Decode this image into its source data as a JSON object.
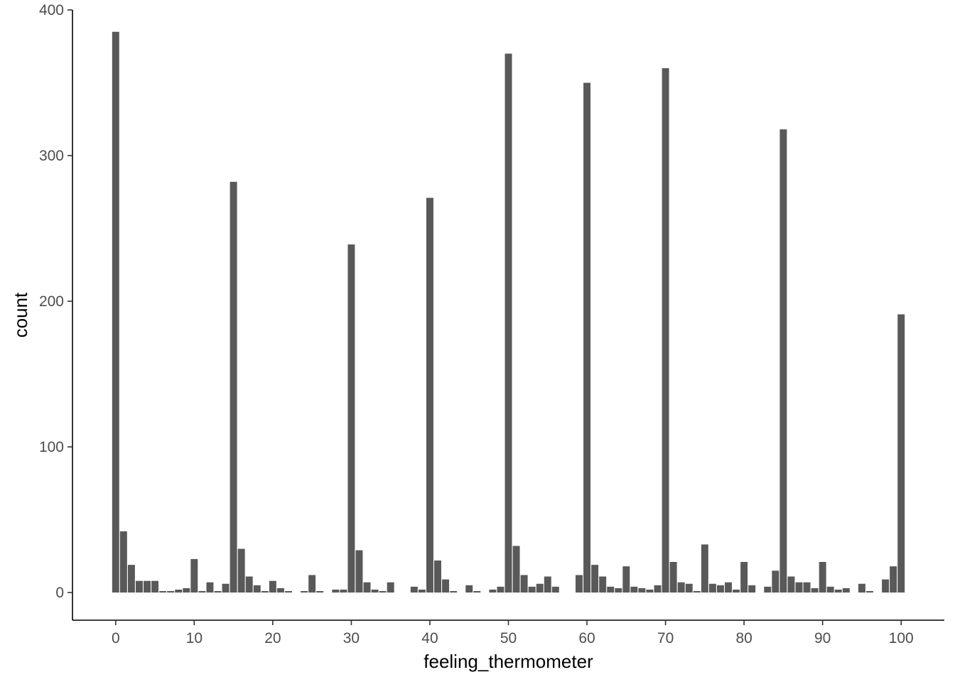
{
  "chart_data": {
    "type": "bar",
    "xlabel": "feeling_thermometer",
    "ylabel": "count",
    "xlim": [
      -5.5,
      105.5
    ],
    "ylim": [
      -19,
      400
    ],
    "x_ticks": [
      0,
      10,
      20,
      30,
      40,
      50,
      60,
      70,
      80,
      90,
      100
    ],
    "y_ticks": [
      0,
      100,
      200,
      300,
      400
    ],
    "bar_color": "#595959",
    "grid": false,
    "x": [
      0,
      1,
      2,
      3,
      4,
      5,
      6,
      7,
      8,
      9,
      10,
      11,
      12,
      13,
      14,
      15,
      16,
      17,
      18,
      19,
      20,
      21,
      22,
      23,
      24,
      25,
      26,
      27,
      28,
      29,
      30,
      31,
      32,
      33,
      34,
      35,
      36,
      37,
      38,
      39,
      40,
      41,
      42,
      43,
      44,
      45,
      46,
      47,
      48,
      49,
      50,
      51,
      52,
      53,
      54,
      55,
      56,
      57,
      58,
      59,
      60,
      61,
      62,
      63,
      64,
      65,
      66,
      67,
      68,
      69,
      70,
      71,
      72,
      73,
      74,
      75,
      76,
      77,
      78,
      79,
      80,
      81,
      82,
      83,
      84,
      85,
      86,
      87,
      88,
      89,
      90,
      91,
      92,
      93,
      94,
      95,
      96,
      97,
      98,
      99,
      100
    ],
    "values": [
      385,
      42,
      19,
      8,
      8,
      8,
      1,
      1,
      2,
      3,
      23,
      1,
      7,
      1,
      6,
      282,
      30,
      11,
      5,
      1,
      8,
      3,
      1,
      0,
      1,
      12,
      1,
      0,
      2,
      2,
      239,
      29,
      7,
      2,
      1,
      7,
      0,
      0,
      4,
      2,
      271,
      22,
      9,
      1,
      0,
      5,
      1,
      0,
      2,
      4,
      370,
      32,
      12,
      4,
      6,
      11,
      4,
      0,
      0,
      12,
      350,
      19,
      11,
      4,
      3,
      18,
      4,
      3,
      2,
      5,
      360,
      21,
      7,
      6,
      1,
      33,
      6,
      5,
      7,
      2,
      21,
      5,
      0,
      4,
      15,
      318,
      11,
      7,
      7,
      3,
      21,
      4,
      2,
      3,
      0,
      6,
      1,
      0,
      9,
      18,
      191
    ]
  }
}
